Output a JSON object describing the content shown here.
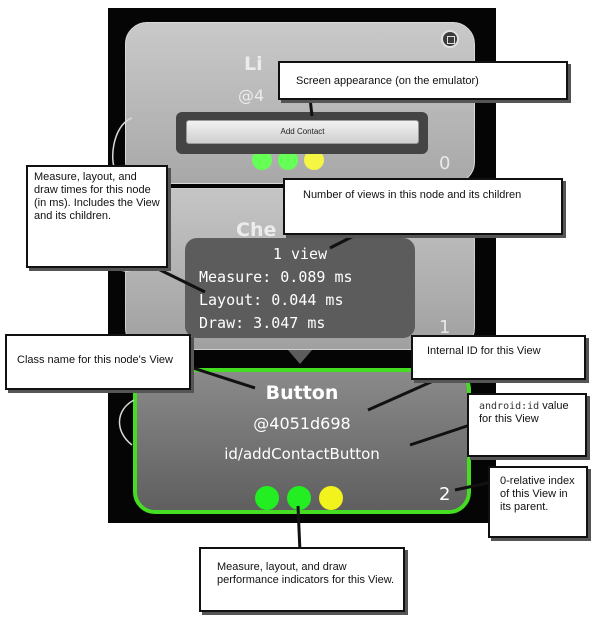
{
  "upper_node": {
    "title_fragment": "Li",
    "id_fragment": "@4",
    "button_label": "Add Contact",
    "index": "0"
  },
  "middle_node": {
    "title_fragment": "Che",
    "index": "1"
  },
  "tooltip": {
    "view_count": "1 view",
    "measure": "Measure: 0.089 ms",
    "layout": "Layout: 0.044 ms",
    "draw": "Draw: 3.047 ms"
  },
  "main_node": {
    "class_name": "Button",
    "internal_id": "@4051d698",
    "view_id": "id/addContactButton",
    "index": "2",
    "indicator_colors": [
      "#22ee22",
      "#22ee22",
      "#f2f21c"
    ],
    "border_color": "#44dd22"
  },
  "callouts": {
    "screen_appearance": "Screen appearance (on the emulator)",
    "measure_times": "Measure, layout, and draw times for this node (in ms). Includes the View and its children.",
    "view_count": "Number of views in this node and its children",
    "class_name": "Class name for this node's View",
    "internal_id": "Internal ID for this View",
    "android_id_code": "android:id",
    "android_id_text": " value for this View",
    "index": "0-relative index of this View in its parent.",
    "indicators": "Measure, layout, and draw performance indicators for this View."
  }
}
